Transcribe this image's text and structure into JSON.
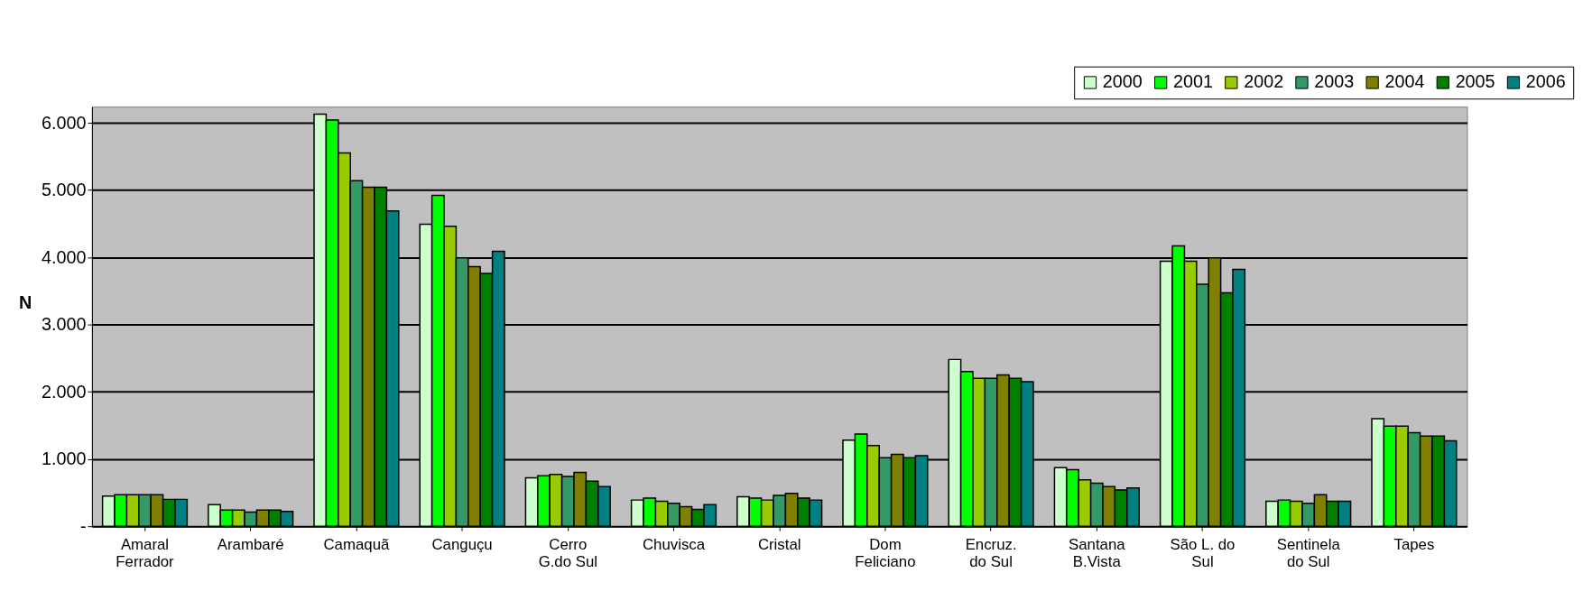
{
  "chart_data": {
    "type": "bar",
    "ylabel": "N",
    "categories": [
      "Amaral\nFerrador",
      "Arambaré",
      "Camaquã",
      "Canguçu",
      "Cerro\nG.do Sul",
      "Chuvisca",
      "Cristal",
      "Dom\nFeliciano",
      "Encruz.\ndo Sul",
      "Santana\nB.Vista",
      "São L. do\nSul",
      "Sentinela\ndo Sul",
      "Tapes"
    ],
    "series": [
      {
        "name": "2000",
        "color": "#ccffcc",
        "values": [
          450,
          320,
          6130,
          4490,
          720,
          390,
          440,
          1280,
          2480,
          870,
          3940,
          370,
          1600
        ]
      },
      {
        "name": "2001",
        "color": "#00ff00",
        "values": [
          470,
          240,
          6040,
          4920,
          750,
          420,
          420,
          1370,
          2300,
          840,
          4170,
          390,
          1490
        ]
      },
      {
        "name": "2002",
        "color": "#99cc00",
        "values": [
          470,
          240,
          5550,
          4460,
          770,
          370,
          390,
          1200,
          2200,
          690,
          3940,
          370,
          1490
        ]
      },
      {
        "name": "2003",
        "color": "#339966",
        "values": [
          470,
          210,
          5140,
          3990,
          740,
          340,
          460,
          1020,
          2200,
          640,
          3600,
          340,
          1390
        ]
      },
      {
        "name": "2004",
        "color": "#808000",
        "values": [
          470,
          240,
          5040,
          3860,
          800,
          290,
          490,
          1070,
          2250,
          590,
          3990,
          470,
          1340
        ]
      },
      {
        "name": "2005",
        "color": "#008000",
        "values": [
          400,
          240,
          5040,
          3760,
          670,
          250,
          420,
          1020,
          2200,
          540,
          3470,
          370,
          1340
        ]
      },
      {
        "name": "2006",
        "color": "#008080",
        "values": [
          400,
          220,
          4690,
          4090,
          590,
          320,
          390,
          1050,
          2150,
          570,
          3820,
          370,
          1270
        ]
      }
    ],
    "ylim": [
      0,
      6240
    ],
    "yticks": [
      {
        "value": 0,
        "label": "-"
      },
      {
        "value": 1000,
        "label": "1.000"
      },
      {
        "value": 2000,
        "label": "2.000"
      },
      {
        "value": 3000,
        "label": "3.000"
      },
      {
        "value": 4000,
        "label": "4.000"
      },
      {
        "value": 5000,
        "label": "5.000"
      },
      {
        "value": 6000,
        "label": "6.000"
      }
    ],
    "grid": "y",
    "legend": "top right"
  }
}
